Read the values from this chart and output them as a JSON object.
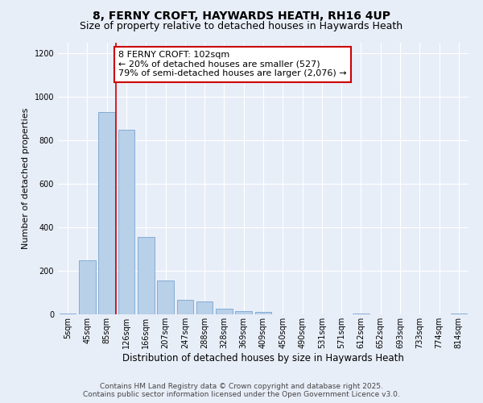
{
  "title": "8, FERNY CROFT, HAYWARDS HEATH, RH16 4UP",
  "subtitle": "Size of property relative to detached houses in Haywards Heath",
  "xlabel": "Distribution of detached houses by size in Haywards Heath",
  "ylabel": "Number of detached properties",
  "categories": [
    "5sqm",
    "45sqm",
    "85sqm",
    "126sqm",
    "166sqm",
    "207sqm",
    "247sqm",
    "288sqm",
    "328sqm",
    "369sqm",
    "409sqm",
    "450sqm",
    "490sqm",
    "531sqm",
    "571sqm",
    "612sqm",
    "652sqm",
    "693sqm",
    "733sqm",
    "774sqm",
    "814sqm"
  ],
  "values": [
    5,
    247,
    930,
    848,
    357,
    157,
    65,
    60,
    27,
    15,
    12,
    0,
    0,
    0,
    0,
    5,
    0,
    0,
    0,
    0,
    5
  ],
  "bar_color": "#b8d0e8",
  "bar_edge_color": "#6699cc",
  "vline_color": "#cc0000",
  "vline_x": 2.45,
  "annotation_text_line1": "8 FERNY CROFT: 102sqm",
  "annotation_text_line2": "← 20% of detached houses are smaller (527)",
  "annotation_text_line3": "79% of semi-detached houses are larger (2,076) →",
  "annotation_box_color": "#ffffff",
  "annotation_box_edge_color": "#cc0000",
  "ylim": [
    0,
    1250
  ],
  "yticks": [
    0,
    200,
    400,
    600,
    800,
    1000,
    1200
  ],
  "bg_color": "#e8eef8",
  "grid_color": "#ffffff",
  "footer_line1": "Contains HM Land Registry data © Crown copyright and database right 2025.",
  "footer_line2": "Contains public sector information licensed under the Open Government Licence v3.0.",
  "title_fontsize": 10,
  "subtitle_fontsize": 9,
  "xlabel_fontsize": 8.5,
  "ylabel_fontsize": 8,
  "tick_fontsize": 7,
  "annotation_fontsize": 8,
  "footer_fontsize": 6.5
}
